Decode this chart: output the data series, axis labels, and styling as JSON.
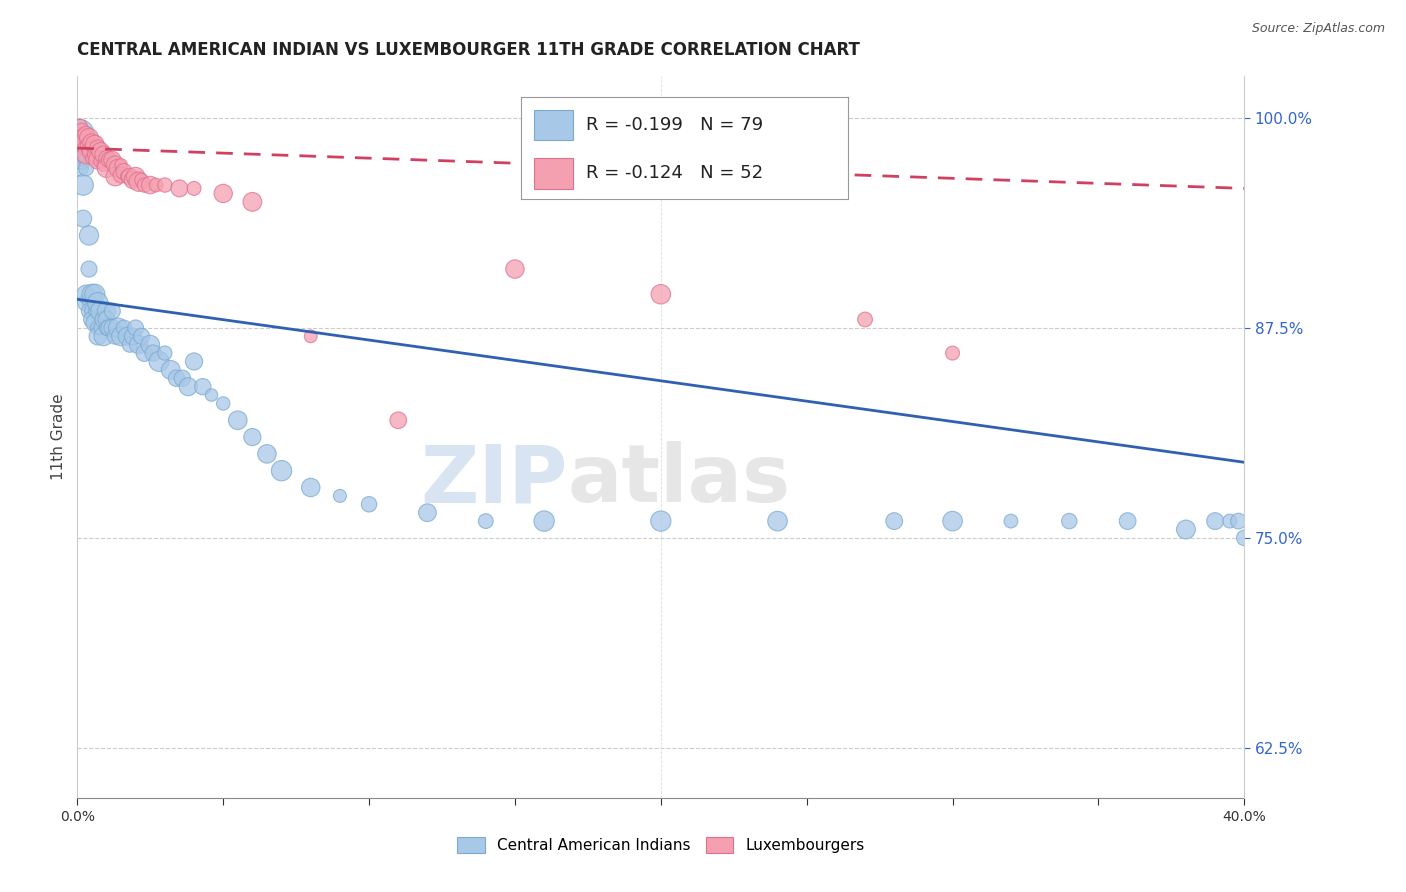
{
  "title": "CENTRAL AMERICAN INDIAN VS LUXEMBOURGER 11TH GRADE CORRELATION CHART",
  "source": "Source: ZipAtlas.com",
  "ylabel": "11th Grade",
  "ylabel_right_ticks": [
    "62.5%",
    "75.0%",
    "87.5%",
    "100.0%"
  ],
  "ylabel_right_vals": [
    0.625,
    0.75,
    0.875,
    1.0
  ],
  "legend_blue": "R = -0.199   N = 79",
  "legend_pink": "R = -0.124   N = 52",
  "legend_label_blue": "Central American Indians",
  "legend_label_pink": "Luxembourgers",
  "blue_color": "#a8c8e8",
  "pink_color": "#f4a0b0",
  "blue_edge_color": "#7aaacf",
  "pink_edge_color": "#e07090",
  "blue_line_color": "#3060b0",
  "pink_line_color": "#d04060",
  "watermark_zip": "ZIP",
  "watermark_atlas": "atlas",
  "xlim": [
    0.0,
    0.4
  ],
  "ylim": [
    0.595,
    1.025
  ],
  "blue_line_x": [
    0.0,
    0.4
  ],
  "blue_line_y": [
    0.892,
    0.795
  ],
  "pink_line_x": [
    0.0,
    0.4
  ],
  "pink_line_y": [
    0.982,
    0.958
  ],
  "blue_scatter_x": [
    0.0005,
    0.001,
    0.001,
    0.0015,
    0.002,
    0.002,
    0.002,
    0.0025,
    0.003,
    0.003,
    0.003,
    0.004,
    0.004,
    0.004,
    0.004,
    0.005,
    0.005,
    0.005,
    0.006,
    0.006,
    0.006,
    0.007,
    0.007,
    0.007,
    0.008,
    0.008,
    0.009,
    0.009,
    0.01,
    0.01,
    0.01,
    0.011,
    0.012,
    0.012,
    0.013,
    0.014,
    0.015,
    0.016,
    0.017,
    0.018,
    0.019,
    0.02,
    0.021,
    0.022,
    0.023,
    0.025,
    0.026,
    0.028,
    0.03,
    0.032,
    0.034,
    0.036,
    0.038,
    0.04,
    0.043,
    0.046,
    0.05,
    0.055,
    0.06,
    0.065,
    0.07,
    0.08,
    0.09,
    0.1,
    0.12,
    0.14,
    0.16,
    0.2,
    0.24,
    0.28,
    0.3,
    0.32,
    0.34,
    0.36,
    0.38,
    0.39,
    0.395,
    0.398,
    0.4
  ],
  "blue_scatter_y": [
    0.99,
    0.98,
    0.97,
    0.975,
    0.96,
    0.985,
    0.94,
    0.975,
    0.97,
    0.89,
    0.895,
    0.93,
    0.91,
    0.89,
    0.885,
    0.895,
    0.885,
    0.88,
    0.895,
    0.885,
    0.878,
    0.89,
    0.875,
    0.87,
    0.885,
    0.875,
    0.88,
    0.87,
    0.885,
    0.88,
    0.875,
    0.875,
    0.885,
    0.875,
    0.87,
    0.875,
    0.87,
    0.875,
    0.87,
    0.865,
    0.87,
    0.875,
    0.865,
    0.87,
    0.86,
    0.865,
    0.86,
    0.855,
    0.86,
    0.85,
    0.845,
    0.845,
    0.84,
    0.855,
    0.84,
    0.835,
    0.83,
    0.82,
    0.81,
    0.8,
    0.79,
    0.78,
    0.775,
    0.77,
    0.765,
    0.76,
    0.76,
    0.76,
    0.76,
    0.76,
    0.76,
    0.76,
    0.76,
    0.76,
    0.755,
    0.76,
    0.76,
    0.76,
    0.75
  ],
  "pink_scatter_x": [
    0.0005,
    0.001,
    0.001,
    0.0015,
    0.002,
    0.002,
    0.003,
    0.003,
    0.003,
    0.004,
    0.004,
    0.005,
    0.005,
    0.005,
    0.006,
    0.006,
    0.007,
    0.007,
    0.008,
    0.008,
    0.009,
    0.009,
    0.01,
    0.01,
    0.011,
    0.012,
    0.013,
    0.013,
    0.014,
    0.015,
    0.015,
    0.016,
    0.017,
    0.018,
    0.019,
    0.02,
    0.021,
    0.022,
    0.023,
    0.025,
    0.027,
    0.03,
    0.035,
    0.04,
    0.05,
    0.06,
    0.08,
    0.11,
    0.15,
    0.2,
    0.27,
    0.3
  ],
  "pink_scatter_y": [
    0.99,
    0.995,
    0.988,
    0.992,
    0.988,
    0.985,
    0.99,
    0.982,
    0.978,
    0.988,
    0.983,
    0.985,
    0.98,
    0.976,
    0.984,
    0.978,
    0.982,
    0.975,
    0.98,
    0.974,
    0.978,
    0.972,
    0.976,
    0.97,
    0.975,
    0.975,
    0.972,
    0.965,
    0.97,
    0.972,
    0.966,
    0.968,
    0.965,
    0.965,
    0.963,
    0.965,
    0.962,
    0.963,
    0.96,
    0.96,
    0.96,
    0.96,
    0.958,
    0.958,
    0.955,
    0.95,
    0.87,
    0.82,
    0.91,
    0.895,
    0.88,
    0.86
  ],
  "dot_size": 120
}
